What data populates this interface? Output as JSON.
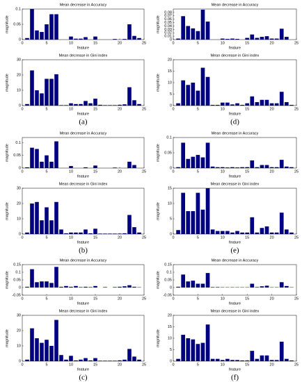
{
  "chart_data": [
    {
      "type": "bar",
      "title": "Mean decrease in Accuracy",
      "xlabel": "feature",
      "ylabel": "magnitude",
      "color": "#000080",
      "x": [
        1,
        2,
        3,
        4,
        5,
        6,
        7,
        8,
        9,
        10,
        11,
        12,
        13,
        14,
        15,
        16,
        17,
        18,
        19,
        20,
        21,
        22,
        23,
        24
      ],
      "values": [
        0.005,
        0.1,
        0.03,
        0.025,
        0.05,
        0.083,
        0.083,
        0,
        0,
        0.01,
        0.003,
        0.003,
        0.008,
        0,
        0.01,
        0,
        0,
        0,
        0.002,
        0,
        0.002,
        0.05,
        0.012,
        0.005
      ],
      "xlim": [
        0,
        25
      ],
      "xticks": [
        0,
        5,
        10,
        15,
        20,
        25
      ],
      "ylim": [
        0,
        0.1
      ],
      "yticks": [
        0,
        0.05,
        0.1
      ]
    },
    {
      "type": "bar",
      "title": "Mean decrease in Gini index",
      "xlabel": "feature",
      "ylabel": "magnitude",
      "caption": "(a)",
      "color": "#000080",
      "x": [
        1,
        2,
        3,
        4,
        5,
        6,
        7,
        8,
        9,
        10,
        11,
        12,
        13,
        14,
        15,
        16,
        17,
        18,
        19,
        20,
        21,
        22,
        23,
        24
      ],
      "values": [
        1,
        23,
        10,
        8,
        17.5,
        17.5,
        20.5,
        0.3,
        0.3,
        1.5,
        1,
        1,
        3,
        1.5,
        4.5,
        0.5,
        0.3,
        0.3,
        0.3,
        0.5,
        0.8,
        12,
        3.5,
        1
      ],
      "xlim": [
        0,
        25
      ],
      "xticks": [
        0,
        5,
        10,
        15,
        20,
        25
      ],
      "ylim": [
        0,
        30
      ],
      "yticks": [
        0,
        10,
        20,
        30
      ]
    },
    {
      "type": "bar",
      "title": "Mean decrease in Accuracy",
      "xlabel": "feature",
      "ylabel": "magnitude",
      "color": "#000080",
      "x": [
        1,
        2,
        3,
        4,
        5,
        6,
        7,
        8,
        9,
        10,
        11,
        12,
        13,
        14,
        15,
        16,
        17,
        18,
        19,
        20,
        21,
        22,
        23,
        24
      ],
      "values": [
        0.003,
        0.08,
        0.075,
        0.025,
        0.05,
        0.025,
        0.105,
        0,
        0,
        0.008,
        0,
        0,
        0.003,
        0,
        0.01,
        0,
        0,
        0,
        0.002,
        0,
        0,
        0.025,
        0.012,
        0
      ],
      "xlim": [
        0,
        25
      ],
      "xticks": [
        0,
        5,
        10,
        15,
        20,
        25
      ],
      "ylim": [
        0,
        0.12
      ],
      "yticks": [
        0,
        0.05,
        0.1
      ]
    },
    {
      "type": "bar",
      "title": "Mean decrease in Gini index",
      "xlabel": "feature",
      "ylabel": "magnitude",
      "caption": "(b)",
      "color": "#000080",
      "x": [
        1,
        2,
        3,
        4,
        5,
        6,
        7,
        8,
        9,
        10,
        11,
        12,
        13,
        14,
        15,
        16,
        17,
        18,
        19,
        20,
        21,
        22,
        23,
        24
      ],
      "values": [
        1,
        20,
        21,
        9,
        17.5,
        9,
        21,
        3,
        0.5,
        1,
        1,
        1,
        3,
        0.5,
        3.5,
        0.3,
        0.3,
        0.3,
        0.3,
        0.3,
        0.5,
        12.5,
        4.5,
        1
      ],
      "xlim": [
        0,
        25
      ],
      "xticks": [
        0,
        5,
        10,
        15,
        20,
        25
      ],
      "ylim": [
        0,
        30
      ],
      "yticks": [
        0,
        10,
        20,
        30
      ]
    },
    {
      "type": "bar",
      "title": "Mean decrease in Accuracy",
      "xlabel": "feature",
      "ylabel": "magnitude",
      "color": "#000080",
      "x": [
        1,
        2,
        3,
        4,
        5,
        6,
        7,
        8,
        9,
        10,
        11,
        12,
        13,
        14,
        15,
        16,
        17,
        18,
        19,
        20,
        21,
        22,
        23,
        24
      ],
      "values": [
        0.005,
        0.12,
        0.035,
        0.04,
        0.04,
        0.03,
        0.135,
        0.005,
        0.01,
        0.005,
        0.01,
        0.003,
        0.005,
        0.003,
        0.01,
        0,
        0.003,
        0,
        0.003,
        0.005,
        0.008,
        0.015,
        0.005,
        0.002
      ],
      "xlim": [
        0,
        25
      ],
      "xticks": [
        0,
        5,
        10,
        15,
        20,
        25
      ],
      "ylim": [
        -0.05,
        0.15
      ],
      "yticks": [
        -0.05,
        0,
        0.05,
        0.1,
        0.15
      ]
    },
    {
      "type": "bar",
      "title": "Mean decrease in Gini index",
      "xlabel": "feature",
      "ylabel": "magnitude",
      "caption": "(c)",
      "color": "#000080",
      "x": [
        1,
        2,
        3,
        4,
        5,
        6,
        7,
        8,
        9,
        10,
        11,
        12,
        13,
        14,
        15,
        16,
        17,
        18,
        19,
        20,
        21,
        22,
        23,
        24
      ],
      "values": [
        1,
        21.5,
        15,
        12,
        14,
        10,
        27,
        4,
        1,
        3.5,
        0.5,
        1,
        2,
        0.5,
        2,
        0.3,
        0.3,
        0.3,
        0.3,
        0.5,
        1,
        8,
        3,
        1
      ],
      "xlim": [
        0,
        25
      ],
      "xticks": [
        0,
        5,
        10,
        15,
        20,
        25
      ],
      "ylim": [
        0,
        30
      ],
      "yticks": [
        0,
        10,
        20,
        30
      ]
    },
    {
      "type": "bar",
      "title": "Mean decrease in Accuracy",
      "xlabel": "feature",
      "ylabel": "magnitude",
      "color": "#000080",
      "x": [
        1,
        2,
        3,
        4,
        5,
        6,
        7,
        8,
        9,
        10,
        11,
        12,
        13,
        14,
        15,
        16,
        17,
        18,
        19,
        20,
        21,
        22,
        23,
        24
      ],
      "values": [
        0.003,
        0.069,
        0.04,
        0.033,
        0.025,
        0.088,
        0.053,
        0,
        0,
        0.003,
        0.002,
        0.003,
        0.002,
        0,
        0.005,
        0.015,
        0.005,
        0.008,
        0.01,
        0.003,
        0.003,
        0.032,
        0.008,
        0
      ],
      "xlim": [
        0,
        25
      ],
      "xticks": [
        0,
        5,
        10,
        15,
        20,
        25
      ],
      "ylim": [
        0,
        0.09
      ],
      "yticks": [
        0,
        0.01,
        0.02,
        0.03,
        0.04,
        0.05,
        0.06,
        0.07,
        0.08
      ]
    },
    {
      "type": "bar",
      "title": "Mean decrease in Gini index",
      "xlabel": "feature",
      "ylabel": "magnitude",
      "caption": "(d)",
      "color": "#000080",
      "x": [
        1,
        2,
        3,
        4,
        5,
        6,
        7,
        8,
        9,
        10,
        11,
        12,
        13,
        14,
        15,
        16,
        17,
        18,
        19,
        20,
        21,
        22,
        23,
        24
      ],
      "values": [
        1,
        11,
        9,
        10,
        6.5,
        16.5,
        12.5,
        0.3,
        0.3,
        1.3,
        1.3,
        0.5,
        1,
        0.3,
        1,
        4,
        1.5,
        2.5,
        2.5,
        1,
        1,
        6,
        1.5,
        0.3
      ],
      "xlim": [
        0,
        25
      ],
      "xticks": [
        0,
        5,
        10,
        15,
        20,
        25
      ],
      "ylim": [
        0,
        20
      ],
      "yticks": [
        0,
        5,
        10,
        15,
        20
      ]
    },
    {
      "type": "bar",
      "title": "Mean decrease in Accuracy",
      "xlabel": "feature",
      "ylabel": "magnitude",
      "color": "#000080",
      "x": [
        1,
        2,
        3,
        4,
        5,
        6,
        7,
        8,
        9,
        10,
        11,
        12,
        13,
        14,
        15,
        16,
        17,
        18,
        19,
        20,
        21,
        22,
        23,
        24
      ],
      "values": [
        0.003,
        0.083,
        0.03,
        0.037,
        0.043,
        0.035,
        0.083,
        0.005,
        0.003,
        0.003,
        0.002,
        0.003,
        0.002,
        0.003,
        0.003,
        0.025,
        0.003,
        0.01,
        0.01,
        0.003,
        0.003,
        0.027,
        0.005,
        0.003
      ],
      "xlim": [
        0,
        25
      ],
      "xticks": [
        0,
        5,
        10,
        15,
        20,
        25
      ],
      "ylim": [
        0,
        0.1
      ],
      "yticks": [
        0,
        0.05,
        0.1
      ]
    },
    {
      "type": "bar",
      "title": "Mean decrease in Gini index",
      "xlabel": "feature",
      "ylabel": "magnitude",
      "caption": "(e)",
      "color": "#000080",
      "x": [
        1,
        2,
        3,
        4,
        5,
        6,
        7,
        8,
        9,
        10,
        11,
        12,
        13,
        14,
        15,
        16,
        17,
        18,
        19,
        20,
        21,
        22,
        23,
        24
      ],
      "values": [
        1.3,
        13.5,
        7.5,
        7.5,
        13.5,
        8,
        15,
        1.5,
        1,
        1,
        1,
        0.5,
        1,
        0.5,
        0.5,
        5.5,
        0.5,
        2,
        2.5,
        0.5,
        0.5,
        7,
        1.5,
        0.5
      ],
      "xlim": [
        0,
        25
      ],
      "xticks": [
        0,
        5,
        10,
        15,
        20,
        25
      ],
      "ylim": [
        0,
        15
      ],
      "yticks": [
        0,
        5,
        10,
        15
      ]
    },
    {
      "type": "bar",
      "title": "Mean decrease in Accuracy",
      "xlabel": "feature",
      "ylabel": "magnitude",
      "color": "#000080",
      "x": [
        1,
        2,
        3,
        4,
        5,
        6,
        7,
        8,
        9,
        10,
        11,
        12,
        13,
        14,
        15,
        16,
        17,
        18,
        19,
        20,
        21,
        22,
        23,
        24
      ],
      "values": [
        0.005,
        0.085,
        0.04,
        0.045,
        0.025,
        0.025,
        0.095,
        0.003,
        0.003,
        0.002,
        0.002,
        0.002,
        0.002,
        0.002,
        0.002,
        0.025,
        0.003,
        0.008,
        0.012,
        0.002,
        0.002,
        0.035,
        0.01,
        0.002
      ],
      "xlim": [
        0,
        25
      ],
      "xticks": [
        0,
        5,
        10,
        15,
        20,
        25
      ],
      "ylim": [
        -0.05,
        0.15
      ],
      "yticks": [
        -0.05,
        0,
        0.05,
        0.1,
        0.15
      ]
    },
    {
      "type": "bar",
      "title": "Mean decrease in Gini index",
      "xlabel": "feature",
      "ylabel": "magnitude",
      "caption": "(f)",
      "color": "#000080",
      "x": [
        1,
        2,
        3,
        4,
        5,
        6,
        7,
        8,
        9,
        10,
        11,
        12,
        13,
        14,
        15,
        16,
        17,
        18,
        19,
        20,
        21,
        22,
        23,
        24
      ],
      "values": [
        1,
        11.5,
        10,
        9.5,
        7.5,
        8,
        16,
        1,
        1,
        0.5,
        1,
        0.5,
        0.5,
        0.3,
        0.3,
        4.5,
        1,
        2.5,
        2.5,
        0.5,
        0.5,
        8.5,
        1,
        0.3
      ],
      "xlim": [
        0,
        25
      ],
      "xticks": [
        0,
        5,
        10,
        15,
        20,
        25
      ],
      "ylim": [
        0,
        20
      ],
      "yticks": [
        0,
        5,
        10,
        15,
        20
      ]
    }
  ]
}
